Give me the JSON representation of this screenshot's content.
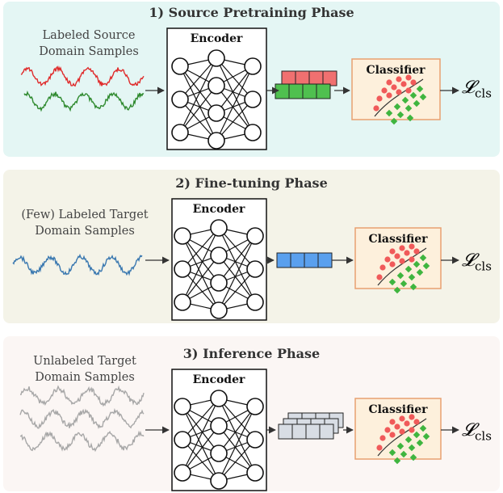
{
  "phases": [
    {
      "title": "1) Source Pretraining Phase",
      "label_line1": "Labeled Source",
      "label_line2": "Domain Samples",
      "encoder": "Encoder",
      "classifier": "Classifier",
      "loss": "𝓛",
      "loss_sub": "cls",
      "bg": "#e4f6f4"
    },
    {
      "title": "2) Fine-tuning Phase",
      "label_line1": "(Few) Labeled Target",
      "label_line2": "Domain Samples",
      "encoder": "Encoder",
      "classifier": "Classifier",
      "loss": "𝓛",
      "loss_sub": "cls",
      "bg": "#f4f3e8"
    },
    {
      "title": "3) Inference Phase",
      "label_line1": "Unlabeled Target",
      "label_line2": "Domain Samples",
      "encoder": "Encoder",
      "classifier": "Classifier",
      "loss": "𝓛",
      "loss_sub": "cls",
      "bg": "#fbf6f4"
    }
  ],
  "colors": {
    "source_red": "#e02b2b",
    "source_green": "#2f8a2f",
    "target_blue": "#3a78b0",
    "unlabeled_gray": "#a8a8a8",
    "feat_red": "#f07070",
    "feat_green": "#4fc04f",
    "feat_blue": "#5aa0ee",
    "feat_gray": "#d8dde4",
    "classifier_bg": "#fdf0dc",
    "classifier_border": "#e8a070"
  }
}
